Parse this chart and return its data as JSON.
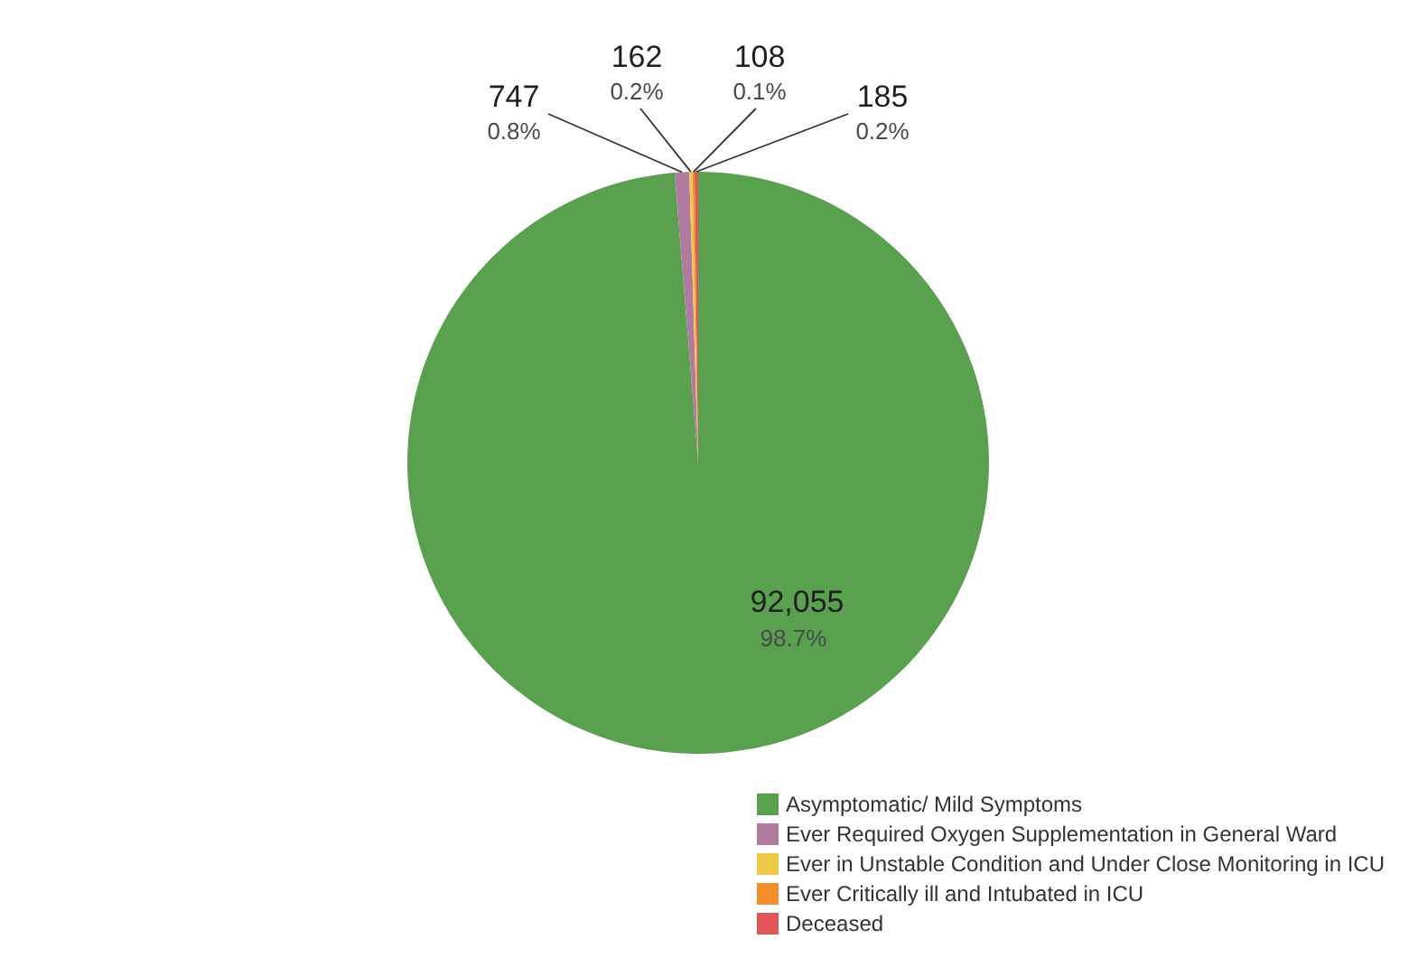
{
  "chart_data": {
    "type": "pie",
    "categories": [
      "Asymptomatic/ Mild Symptoms",
      "Ever Required Oxygen Supplementation in General Ward",
      "Ever in Unstable Condition and Under Close Monitoring in ICU",
      "Ever Critically ill and Intubated in ICU",
      "Deceased"
    ],
    "values": [
      92055,
      747,
      162,
      108,
      185
    ],
    "colors": [
      "#59a14f",
      "#b07aa1",
      "#edc948",
      "#f28e2b",
      "#e15759"
    ],
    "value_labels": [
      "92,055",
      "747",
      "162",
      "108",
      "185"
    ],
    "annotations": [
      {
        "text": "98.7%",
        "x": "Asymptomatic/ Mild Symptoms"
      },
      {
        "text": "0.8%",
        "x": "Ever Required Oxygen Supplementation in General Ward"
      },
      {
        "text": "0.2%",
        "x": "Ever in Unstable Condition and Under Close Monitoring in ICU"
      },
      {
        "text": "0.1%",
        "x": "Ever Critically ill and Intubated in ICU"
      },
      {
        "text": "0.2%",
        "x": "Deceased"
      }
    ],
    "legend": "bottom right"
  }
}
